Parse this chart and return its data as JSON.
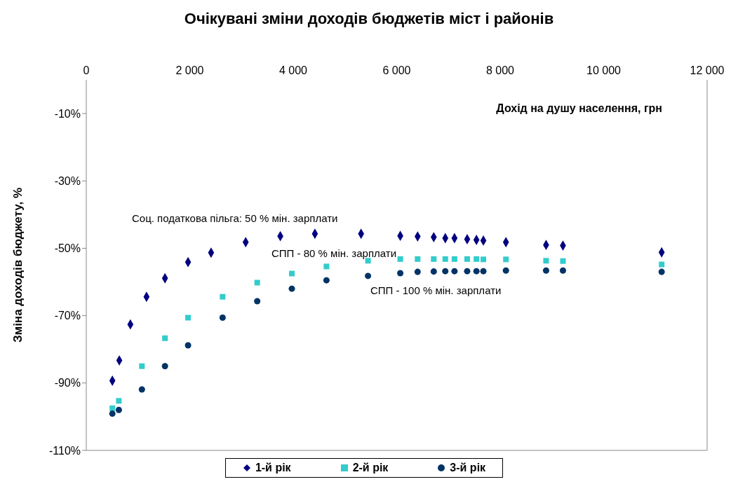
{
  "chart_data": {
    "type": "scatter",
    "title": "Очікувані зміни доходів бюджетів міст і районів",
    "xlabel": "Дохід на душу населення, грн",
    "ylabel": "Зміна доходів бюджету, %",
    "xlim": [
      0,
      12000
    ],
    "xticks": [
      0,
      {
        "value": 2000,
        "label": "2 000"
      },
      {
        "value": 4000,
        "label": "4 000"
      },
      {
        "value": 6000,
        "label": "6 000"
      },
      {
        "value": 8000,
        "label": "8 000"
      },
      {
        "value": 10000,
        "label": "10 000"
      },
      {
        "value": 12000,
        "label": "12 000"
      }
    ],
    "ylim": [
      -110,
      0
    ],
    "yticks": [
      {
        "value": -110,
        "label": "-110%"
      },
      {
        "value": -90,
        "label": "-90%"
      },
      {
        "value": -70,
        "label": "-70%"
      },
      {
        "value": -50,
        "label": "-50%"
      },
      {
        "value": -30,
        "label": "-30%"
      },
      {
        "value": -10,
        "label": "-10%"
      }
    ],
    "grid": false,
    "legend": "bottom",
    "series": [
      {
        "name": "1-й рік",
        "color": "#000080",
        "marker": "diamond",
        "x": [
          504,
          638,
          852,
          1164,
          1521,
          1967,
          2412,
          3081,
          3750,
          4419,
          5311,
          6069,
          6404,
          6716,
          6939,
          7117,
          7362,
          7541,
          7675,
          8111,
          8887,
          9213,
          11121
        ],
        "values": [
          -89.3,
          -83.3,
          -72.6,
          -64.4,
          -58.9,
          -54.1,
          -51.3,
          -48.2,
          -46.4,
          -45.7,
          -45.7,
          -46.3,
          -46.5,
          -46.7,
          -47.0,
          -47.0,
          -47.3,
          -47.5,
          -47.7,
          -48.2,
          -49.0,
          -49.2,
          -51.2
        ]
      },
      {
        "name": "2-й рік",
        "color": "#33cccc",
        "marker": "square",
        "x": [
          504,
          629,
          1075,
          1521,
          1967,
          2635,
          3304,
          3973,
          4642,
          5445,
          6069,
          6404,
          6716,
          6939,
          7117,
          7362,
          7541,
          7675,
          8111,
          8887,
          9213,
          11121
        ],
        "values": [
          -97.5,
          -95.3,
          -85.0,
          -76.7,
          -70.6,
          -64.4,
          -60.2,
          -57.5,
          -55.4,
          -53.7,
          -53.2,
          -53.2,
          -53.2,
          -53.2,
          -53.2,
          -53.2,
          -53.2,
          -53.3,
          -53.3,
          -53.7,
          -53.8,
          -54.8
        ]
      },
      {
        "name": "3-й рік",
        "color": "#003366",
        "marker": "circle",
        "x": [
          504,
          629,
          1075,
          1521,
          1967,
          2635,
          3304,
          3973,
          4642,
          5445,
          6069,
          6404,
          6716,
          6939,
          7117,
          7362,
          7541,
          7675,
          8111,
          8887,
          9213,
          11121
        ],
        "values": [
          -99.1,
          -98.0,
          -91.9,
          -85.0,
          -78.8,
          -70.6,
          -65.7,
          -62.0,
          -59.5,
          -58.2,
          -57.4,
          -57.0,
          -56.9,
          -56.8,
          -56.8,
          -56.8,
          -56.8,
          -56.8,
          -56.6,
          -56.6,
          -56.6,
          -57.0
        ]
      }
    ],
    "annotations": [
      "Соц. податкова пільга: 50 % мін. зарплати",
      "СПП - 80 % мін. зарплати",
      "СПП - 100 % мін. зарплати"
    ]
  }
}
